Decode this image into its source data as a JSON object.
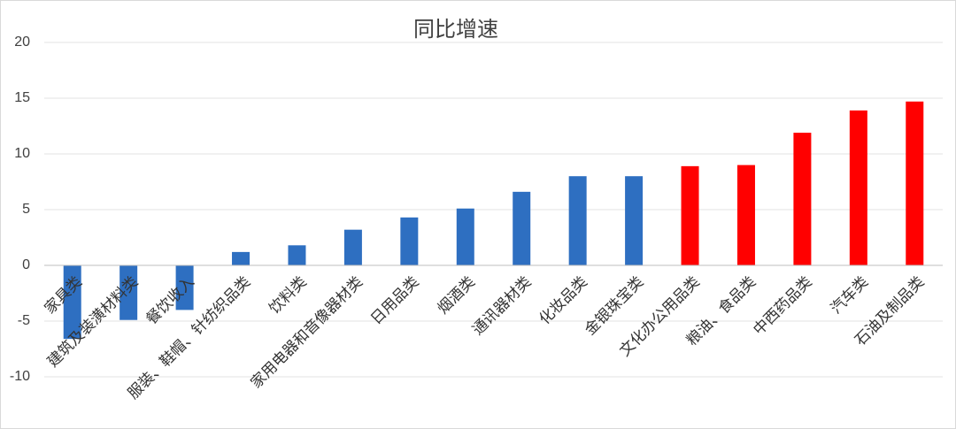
{
  "chart_data": {
    "type": "bar",
    "title": "同比增速",
    "categories": [
      "家具类",
      "建筑及装潢材料类",
      "餐饮收入",
      "服装、鞋帽、针纺织品类",
      "饮料类",
      "家用电器和音像器材类",
      "日用品类",
      "烟酒类",
      "通讯器材类",
      "化妆品类",
      "金银珠宝类",
      "文化办公用品类",
      "粮油、食品类",
      "中西药品类",
      "汽车类",
      "石油及制品类"
    ],
    "values": [
      -6.6,
      -4.9,
      -4.0,
      1.2,
      1.8,
      3.2,
      4.3,
      5.1,
      6.6,
      8.0,
      8.0,
      8.9,
      9.0,
      11.9,
      13.9,
      14.7
    ],
    "colors": [
      "#2e6fc1",
      "#2e6fc1",
      "#2e6fc1",
      "#2e6fc1",
      "#2e6fc1",
      "#2e6fc1",
      "#2e6fc1",
      "#2e6fc1",
      "#2e6fc1",
      "#2e6fc1",
      "#2e6fc1",
      "#ff0000",
      "#ff0000",
      "#ff0000",
      "#ff0000",
      "#ff0000"
    ],
    "ylim": [
      -10,
      20
    ],
    "yticks": [
      -10,
      -5,
      0,
      5,
      10,
      15,
      20
    ],
    "grid": true
  }
}
